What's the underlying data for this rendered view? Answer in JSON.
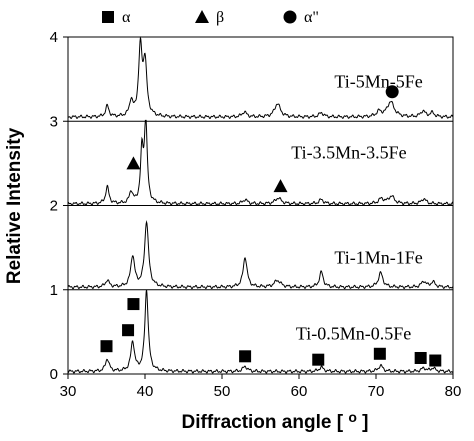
{
  "chart_data": {
    "type": "line",
    "xlabel": "Diffraction angle [ o ]",
    "ylabel": "Relative Intensity",
    "xlim": [
      30,
      80
    ],
    "ylim": [
      0,
      4
    ],
    "x_ticks": [
      "30",
      "40",
      "50",
      "60",
      "70",
      "80"
    ],
    "y_ticks": [
      "0",
      "1",
      "2",
      "3",
      "4"
    ],
    "legend": [
      {
        "marker": "square",
        "label": "α"
      },
      {
        "marker": "triangle",
        "label": "β"
      },
      {
        "marker": "circle",
        "label": "α\""
      }
    ],
    "series": [
      {
        "name": "Ti-0.5Mn-0.5Fe",
        "baseline": 0.03,
        "peaks": [
          {
            "x": 35.1,
            "h": 0.15,
            "w": 0.28
          },
          {
            "x": 38.4,
            "h": 0.35,
            "w": 0.28
          },
          {
            "x": 40.2,
            "h": 0.97,
            "w": 0.26
          },
          {
            "x": 53.0,
            "h": 0.06,
            "w": 0.35
          },
          {
            "x": 62.9,
            "h": 0.05,
            "w": 0.35
          },
          {
            "x": 70.6,
            "h": 0.07,
            "w": 0.35
          },
          {
            "x": 76.2,
            "h": 0.04,
            "w": 0.35
          },
          {
            "x": 77.4,
            "h": 0.04,
            "w": 0.35
          }
        ]
      },
      {
        "name": "Ti-1Mn-1Fe",
        "baseline": 1.03,
        "peaks": [
          {
            "x": 35.1,
            "h": 0.08,
            "w": 0.3
          },
          {
            "x": 38.4,
            "h": 0.37,
            "w": 0.3
          },
          {
            "x": 40.2,
            "h": 0.78,
            "w": 0.3
          },
          {
            "x": 53.0,
            "h": 0.36,
            "w": 0.3
          },
          {
            "x": 57.2,
            "h": 0.08,
            "w": 0.5
          },
          {
            "x": 62.9,
            "h": 0.18,
            "w": 0.3
          },
          {
            "x": 70.6,
            "h": 0.17,
            "w": 0.35
          },
          {
            "x": 76.2,
            "h": 0.07,
            "w": 0.35
          },
          {
            "x": 77.4,
            "h": 0.06,
            "w": 0.35
          }
        ]
      },
      {
        "name": "Ti-3.5Mn-3.5Fe",
        "baseline": 2.02,
        "peaks": [
          {
            "x": 35.1,
            "h": 0.2,
            "w": 0.26
          },
          {
            "x": 38.2,
            "h": 0.14,
            "w": 0.26
          },
          {
            "x": 39.6,
            "h": 0.6,
            "w": 0.22
          },
          {
            "x": 40.1,
            "h": 0.96,
            "w": 0.22
          },
          {
            "x": 53.0,
            "h": 0.05,
            "w": 0.35
          },
          {
            "x": 57.3,
            "h": 0.07,
            "w": 0.45
          },
          {
            "x": 62.9,
            "h": 0.05,
            "w": 0.35
          },
          {
            "x": 70.7,
            "h": 0.06,
            "w": 0.4
          },
          {
            "x": 72.0,
            "h": 0.09,
            "w": 0.45
          },
          {
            "x": 76.2,
            "h": 0.06,
            "w": 0.35
          }
        ]
      },
      {
        "name": "Ti-5Mn-5Fe",
        "baseline": 3.05,
        "peaks": [
          {
            "x": 35.1,
            "h": 0.13,
            "w": 0.26
          },
          {
            "x": 38.2,
            "h": 0.18,
            "w": 0.26
          },
          {
            "x": 39.4,
            "h": 0.8,
            "w": 0.28
          },
          {
            "x": 40.0,
            "h": 0.62,
            "w": 0.28
          },
          {
            "x": 52.9,
            "h": 0.06,
            "w": 0.35
          },
          {
            "x": 57.2,
            "h": 0.16,
            "w": 0.45
          },
          {
            "x": 62.9,
            "h": 0.05,
            "w": 0.35
          },
          {
            "x": 70.4,
            "h": 0.06,
            "w": 0.4
          },
          {
            "x": 71.9,
            "h": 0.18,
            "w": 0.55
          },
          {
            "x": 76.1,
            "h": 0.07,
            "w": 0.35
          },
          {
            "x": 77.3,
            "h": 0.05,
            "w": 0.35
          }
        ]
      }
    ],
    "phase_markers": [
      {
        "phase": "square",
        "x": 35.0,
        "y": 0.33
      },
      {
        "phase": "square",
        "x": 37.8,
        "y": 0.52
      },
      {
        "phase": "square",
        "x": 38.5,
        "y": 0.83
      },
      {
        "phase": "square",
        "x": 53.0,
        "y": 0.21
      },
      {
        "phase": "square",
        "x": 62.5,
        "y": 0.17
      },
      {
        "phase": "square",
        "x": 70.5,
        "y": 0.24
      },
      {
        "phase": "square",
        "x": 75.8,
        "y": 0.19
      },
      {
        "phase": "square",
        "x": 77.7,
        "y": 0.16
      },
      {
        "phase": "triangle",
        "x": 38.5,
        "y": 2.5
      },
      {
        "phase": "triangle",
        "x": 57.6,
        "y": 2.23
      },
      {
        "phase": "circle",
        "x": 72.1,
        "y": 3.35
      }
    ],
    "series_labels": [
      {
        "text": "Ti-5Mn-5Fe",
        "x": 64.6,
        "y": 3.47
      },
      {
        "text": "Ti-3.5Mn-3.5Fe",
        "x": 59.0,
        "y": 2.63
      },
      {
        "text": "Ti-1Mn-1Fe",
        "x": 64.6,
        "y": 1.38
      },
      {
        "text": "Ti-0.5Mn-0.5Fe",
        "x": 59.6,
        "y": 0.48
      }
    ]
  }
}
